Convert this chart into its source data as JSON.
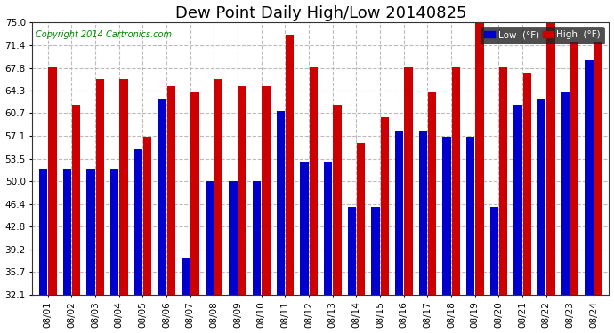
{
  "title": "Dew Point Daily High/Low 20140825",
  "copyright": "Copyright 2014 Cartronics.com",
  "dates": [
    "08/01",
    "08/02",
    "08/03",
    "08/04",
    "08/05",
    "08/06",
    "08/07",
    "08/08",
    "08/09",
    "08/10",
    "08/11",
    "08/12",
    "08/13",
    "08/14",
    "08/15",
    "08/16",
    "08/17",
    "08/18",
    "08/19",
    "08/20",
    "08/21",
    "08/22",
    "08/23",
    "08/24"
  ],
  "low_values": [
    52,
    52,
    52,
    52,
    55,
    63,
    38,
    50,
    50,
    50,
    61,
    53,
    53,
    46,
    46,
    58,
    58,
    57,
    57,
    46,
    62,
    63,
    64,
    69
  ],
  "high_values": [
    68,
    62,
    66,
    66,
    57,
    65,
    64,
    66,
    65,
    65,
    73,
    68,
    62,
    56,
    60,
    68,
    64,
    68,
    75,
    68,
    67,
    75,
    72,
    72
  ],
  "low_color": "#0000cc",
  "high_color": "#cc0000",
  "bg_color": "#ffffff",
  "grid_color": "#bbbbbb",
  "ylim_min": 32.1,
  "ylim_max": 75.0,
  "yticks": [
    32.1,
    35.7,
    39.2,
    42.8,
    46.4,
    50.0,
    53.5,
    57.1,
    60.7,
    64.3,
    67.8,
    71.4,
    75.0
  ],
  "title_fontsize": 13,
  "label_fontsize": 7.5,
  "copyright_fontsize": 7,
  "bar_width": 0.35,
  "bar_gap": 0.03
}
